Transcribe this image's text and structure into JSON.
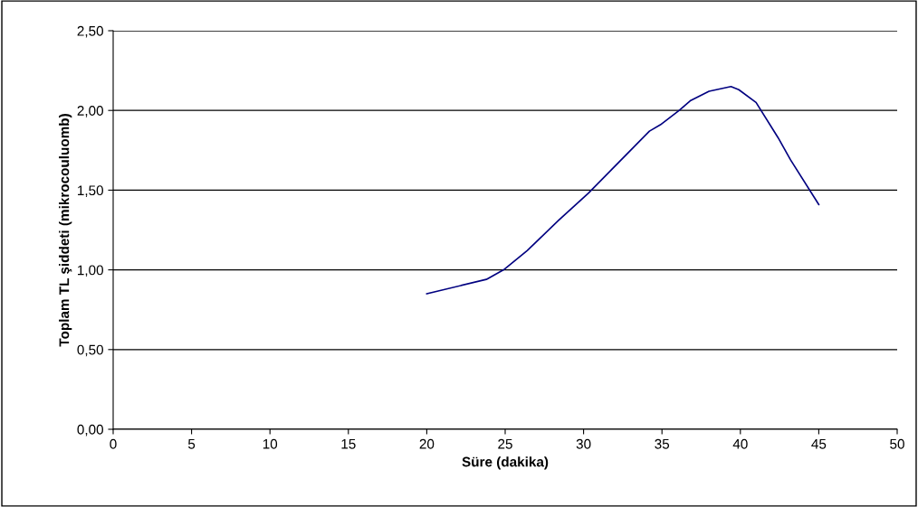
{
  "chart_data": {
    "type": "line",
    "xlabel": "Süre (dakika)",
    "ylabel": "Toplam TL şiddeti (mikrocouluomb)",
    "x": [
      20.0,
      23.8,
      24.9,
      26.4,
      28.4,
      30.3,
      32.2,
      34.2,
      34.9,
      36.1,
      36.8,
      38.0,
      39.4,
      39.9,
      41.0,
      42.4,
      43.2,
      45.0
    ],
    "series": [
      {
        "color": "#000080",
        "values": [
          0.85,
          0.94,
          1.0,
          1.12,
          1.31,
          1.48,
          1.67,
          1.87,
          1.91,
          2.0,
          2.06,
          2.12,
          2.15,
          2.13,
          2.05,
          1.83,
          1.69,
          1.41
        ]
      }
    ],
    "xlim": [
      0,
      50
    ],
    "xticks": [
      0,
      5,
      10,
      15,
      20,
      25,
      30,
      35,
      40,
      45,
      50
    ],
    "ylim": [
      0,
      2.5
    ],
    "yticks": [
      {
        "value": 0,
        "label": "0,00"
      },
      {
        "value": 0.5,
        "label": "0,50"
      },
      {
        "value": 1.0,
        "label": "1,00"
      },
      {
        "value": 1.5,
        "label": "1,50"
      },
      {
        "value": 2.0,
        "label": "2,00"
      },
      {
        "value": 2.5,
        "label": "2,50"
      }
    ],
    "grid": "y",
    "marker": "none",
    "line_style": "solid"
  }
}
